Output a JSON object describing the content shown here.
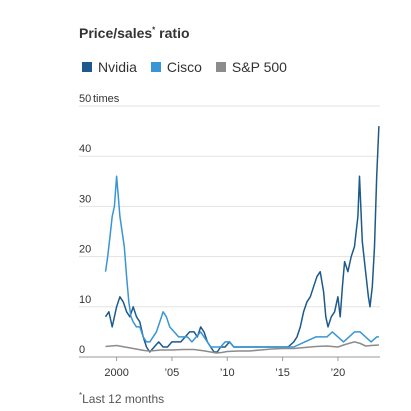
{
  "chart_data": {
    "type": "line",
    "title": "Price/sales",
    "title_marker": "*",
    "title_suffix": " ratio",
    "footnote_marker": "*",
    "footnote_text": "Last 12 months",
    "y_unit_label": "times",
    "ylim": [
      0,
      50
    ],
    "yticks": [
      0,
      10,
      20,
      30,
      40,
      50
    ],
    "xlim": [
      1998.5,
      2023.8
    ],
    "xticks": [
      2000,
      2005,
      2010,
      2015,
      2020
    ],
    "xtick_labels": [
      "2000",
      "’05",
      "’10",
      "’15",
      "’20"
    ],
    "grid": true,
    "legend_position": "top",
    "series": [
      {
        "name": "Nvidia",
        "color": "#1d5a8b",
        "x": [
          1999.0,
          1999.3,
          1999.6,
          2000.0,
          2000.3,
          2000.6,
          2000.9,
          2001.2,
          2001.5,
          2001.8,
          2002.1,
          2002.4,
          2002.7,
          2003.0,
          2003.4,
          2003.8,
          2004.2,
          2004.6,
          2005.0,
          2005.4,
          2005.8,
          2006.2,
          2006.6,
          2007.0,
          2007.3,
          2007.6,
          2007.9,
          2008.2,
          2008.5,
          2008.8,
          2009.1,
          2009.4,
          2009.8,
          2010.2,
          2010.6,
          2011.0,
          2011.4,
          2011.8,
          2012.2,
          2012.6,
          2013.0,
          2013.5,
          2014.0,
          2014.5,
          2015.0,
          2015.5,
          2016.0,
          2016.3,
          2016.6,
          2016.9,
          2017.2,
          2017.5,
          2017.8,
          2018.1,
          2018.4,
          2018.7,
          2018.9,
          2019.1,
          2019.4,
          2019.7,
          2020.0,
          2020.2,
          2020.4,
          2020.6,
          2020.9,
          2021.2,
          2021.5,
          2021.8,
          2021.95,
          2022.2,
          2022.5,
          2022.75,
          2022.9,
          2023.1,
          2023.3,
          2023.5,
          2023.7
        ],
        "values": [
          8,
          9,
          6,
          10,
          12,
          11,
          9,
          8,
          10,
          8,
          7,
          4,
          2,
          1,
          2,
          3,
          2,
          2,
          3,
          3,
          3,
          4,
          5,
          5,
          4,
          6,
          5,
          3,
          2,
          1,
          1,
          2,
          2,
          3,
          2,
          2,
          2,
          2,
          2,
          2,
          2,
          2,
          2,
          2,
          2,
          2,
          3,
          4,
          6,
          9,
          11,
          12,
          14,
          16,
          17,
          13,
          8,
          6,
          8,
          9,
          12,
          8,
          14,
          19,
          17,
          20,
          22,
          28,
          36,
          23,
          17,
          12,
          10,
          14,
          22,
          36,
          46
        ]
      },
      {
        "name": "Cisco",
        "color": "#3a95d5",
        "x": [
          1999.0,
          1999.2,
          1999.4,
          1999.6,
          1999.8,
          2000.0,
          2000.15,
          2000.3,
          2000.5,
          2000.7,
          2000.9,
          2001.1,
          2001.3,
          2001.5,
          2001.8,
          2002.1,
          2002.4,
          2002.7,
          2003.0,
          2003.3,
          2003.6,
          2003.9,
          2004.2,
          2004.5,
          2004.8,
          2005.2,
          2005.6,
          2006.0,
          2006.4,
          2006.8,
          2007.2,
          2007.6,
          2007.9,
          2008.2,
          2008.5,
          2008.8,
          2009.1,
          2009.4,
          2009.8,
          2010.2,
          2010.6,
          2011.0,
          2011.5,
          2012.0,
          2012.5,
          2013.0,
          2014.0,
          2015.0,
          2016.0,
          2017.0,
          2018.0,
          2019.0,
          2019.5,
          2020.0,
          2020.5,
          2021.0,
          2021.5,
          2022.0,
          2022.5,
          2023.0,
          2023.5,
          2023.7
        ],
        "values": [
          17,
          20,
          24,
          28,
          30,
          36,
          32,
          28,
          25,
          22,
          16,
          11,
          8,
          7,
          6,
          6,
          4,
          3,
          3,
          4,
          5,
          7,
          9,
          8,
          6,
          5,
          4,
          4,
          4,
          3,
          4,
          5,
          4,
          3,
          2,
          2,
          2,
          2,
          3,
          3,
          2,
          2,
          2,
          2,
          2,
          2,
          2,
          2,
          2,
          3,
          4,
          4,
          5,
          4,
          3,
          4,
          5,
          5,
          4,
          3,
          4,
          4
        ]
      },
      {
        "name": "S&P 500",
        "color": "#8c8c8c",
        "x": [
          1999.0,
          1999.5,
          2000.0,
          2000.5,
          2001.0,
          2001.5,
          2002.0,
          2002.5,
          2003.0,
          2004.0,
          2005.0,
          2006.0,
          2007.0,
          2008.0,
          2008.5,
          2009.0,
          2009.5,
          2010.0,
          2011.0,
          2012.0,
          2013.0,
          2014.0,
          2015.0,
          2016.0,
          2017.0,
          2018.0,
          2019.0,
          2020.0,
          2020.5,
          2021.0,
          2021.5,
          2022.0,
          2022.5,
          2023.0,
          2023.7
        ],
        "values": [
          2.1,
          2.2,
          2.3,
          2.1,
          1.9,
          1.7,
          1.5,
          1.3,
          1.2,
          1.4,
          1.4,
          1.5,
          1.5,
          1.2,
          1.0,
          0.8,
          0.9,
          1.1,
          1.2,
          1.2,
          1.4,
          1.6,
          1.7,
          1.7,
          1.9,
          2.1,
          2.2,
          2.0,
          2.4,
          2.7,
          3.0,
          2.7,
          2.2,
          2.3,
          2.4
        ]
      }
    ]
  }
}
